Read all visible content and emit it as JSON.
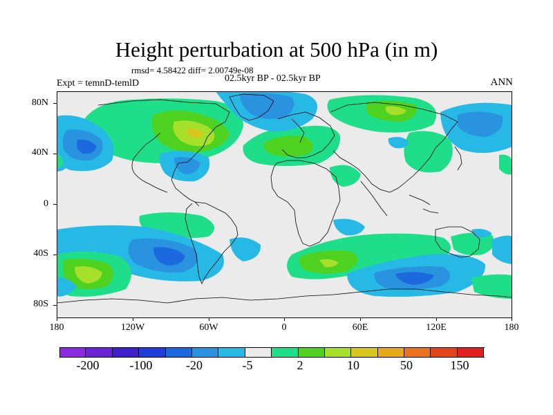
{
  "title": "Height perturbation at 500 hPa (in m)",
  "rmsd_text": "rmsd= 4.58422 diff= 2.00749e-08",
  "period_text": "02.5kyr BP - 02.5kyr BP",
  "expt_text": "Expt = temnD-temlD",
  "season_text": "ANN",
  "axes": {
    "lat_labels": [
      "80N",
      "40N",
      "0",
      "40S",
      "80S"
    ],
    "lon_labels": [
      "180",
      "120W",
      "60W",
      "0",
      "60E",
      "120E",
      "180"
    ]
  },
  "colorbar": {
    "colors": [
      "#8a2be2",
      "#6a24d6",
      "#3f1fc9",
      "#1f3ed8",
      "#1c68de",
      "#2a93e0",
      "#27b9e6",
      "#ebebeb",
      "#1fde8a",
      "#4fd21f",
      "#a6e02a",
      "#d8c81d",
      "#e7a81a",
      "#e9741c",
      "#e4441a",
      "#e01f1f"
    ],
    "labels": [
      "-200",
      "-100",
      "-20",
      "-5",
      "2",
      "10",
      "50",
      "150"
    ]
  },
  "legend_colors": {
    "neg_weak": "#27b9e6",
    "neg_mid": "#2a93e0",
    "neg_strong": "#1c68de",
    "pos_weak": "#1fde8a",
    "pos_mid": "#4fd21f",
    "pos_strong": "#a6e02a",
    "pos_max": "#d8c81d"
  }
}
